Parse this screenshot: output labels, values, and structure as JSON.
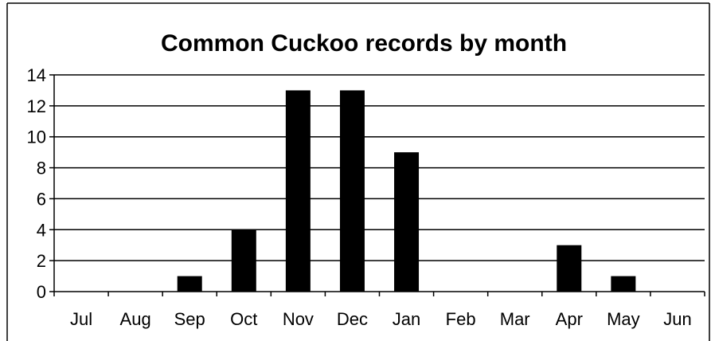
{
  "chart_data": {
    "type": "bar",
    "title": "Common Cuckoo records by month",
    "categories": [
      "Jul",
      "Aug",
      "Sep",
      "Oct",
      "Nov",
      "Dec",
      "Jan",
      "Feb",
      "Mar",
      "Apr",
      "May",
      "Jun"
    ],
    "values": [
      0,
      0,
      1,
      4,
      13,
      13,
      9,
      0,
      0,
      3,
      1,
      0
    ],
    "xlabel": "",
    "ylabel": "",
    "ylim": [
      0,
      14
    ],
    "yticks": [
      0,
      2,
      4,
      6,
      8,
      10,
      12,
      14
    ],
    "grid": true,
    "legend": "none",
    "bar_color": "#000000",
    "grid_color": "#000000",
    "background": "#ffffff"
  }
}
